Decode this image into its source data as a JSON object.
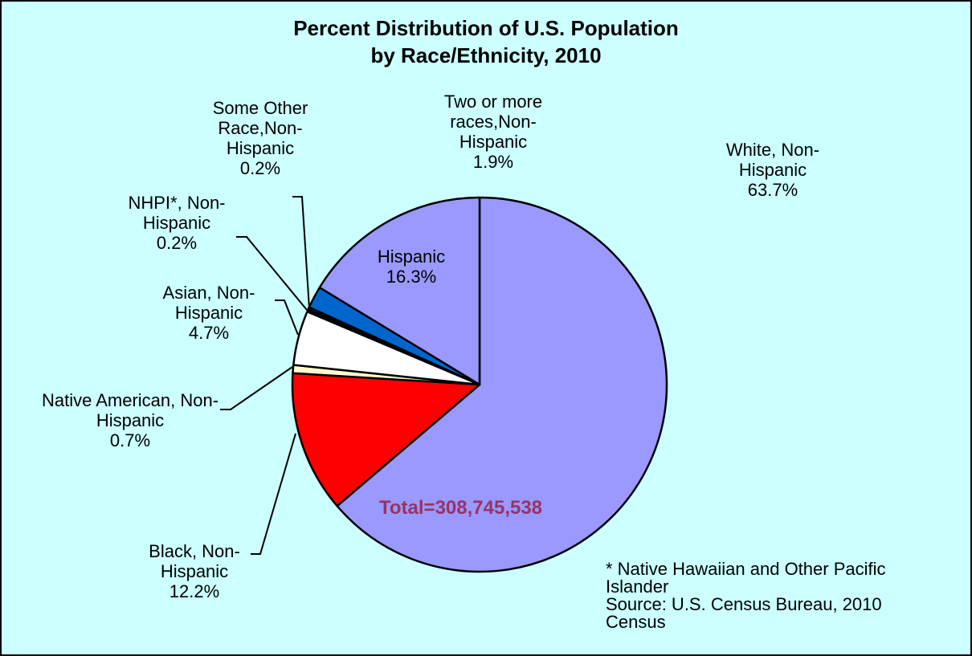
{
  "chart_data": {
    "type": "pie",
    "title": [
      "Percent Distribution of U.S. Population",
      "by Race/Ethnicity, 2010"
    ],
    "categories": [
      "White, Non-Hispanic",
      "Black, Non-Hispanic",
      "Native American, Non-Hispanic",
      "Asian, Non-Hispanic",
      "NHPI*, Non-Hispanic",
      "Some Other Race,Non-Hispanic",
      "Two or more races,Non-Hispanic",
      "Hispanic"
    ],
    "values": [
      63.7,
      12.2,
      0.7,
      4.7,
      0.2,
      0.2,
      1.9,
      16.3
    ],
    "value_labels": [
      "63.7%",
      "12.2%",
      "0.7%",
      "4.7%",
      "0.2%",
      "0.2%",
      "1.9%",
      "16.3%"
    ],
    "colors": [
      "#9999ff",
      "#ff0000",
      "#ffffcc",
      "#ffffff",
      "#000080",
      "#333366",
      "#0066cc",
      "#9999ff"
    ],
    "annotations": [
      "Total=308,745,538",
      "* Native Hawaiian and Other Pacific Islander",
      "Source: U.S. Census Bureau, 2010 Census"
    ]
  }
}
